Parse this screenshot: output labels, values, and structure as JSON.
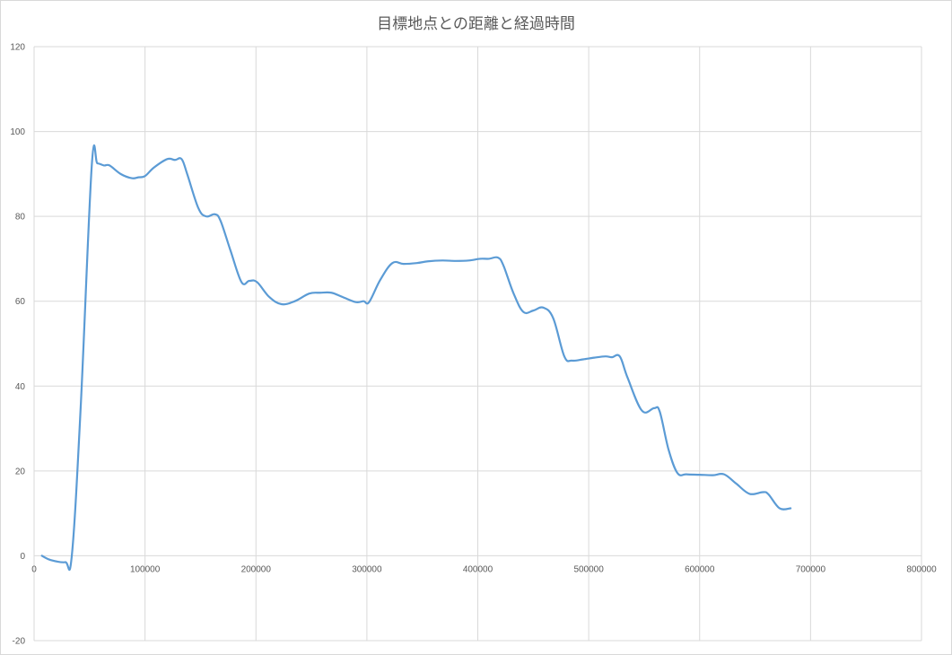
{
  "chart_data": {
    "type": "line",
    "title": "目標地点との距離と経過時間",
    "xlabel": "",
    "ylabel": "",
    "xlim": [
      0,
      800000
    ],
    "ylim": [
      -20,
      120
    ],
    "x_ticks": [
      0,
      100000,
      200000,
      300000,
      400000,
      500000,
      600000,
      700000,
      800000
    ],
    "x_tick_labels": [
      "0",
      "100000",
      "200000",
      "300000",
      "400000",
      "500000",
      "600000",
      "700000",
      "800000"
    ],
    "y_ticks": [
      -20,
      0,
      20,
      40,
      60,
      80,
      100,
      120
    ],
    "y_tick_labels": [
      "-20",
      "0",
      "20",
      "40",
      "60",
      "80",
      "100",
      "120"
    ],
    "grid": true,
    "legend": "none",
    "colors": {
      "series": "#5b9bd5",
      "grid": "#d9d9d9",
      "text": "#595959"
    },
    "series": [
      {
        "x": [
          7000,
          15000,
          28000,
          34000,
          42000,
          52000,
          57000,
          63000,
          68000,
          78000,
          88000,
          94000,
          100000,
          108000,
          120000,
          127000,
          133000,
          138000,
          148000,
          155000,
          163000,
          168000,
          177000,
          187000,
          194000,
          201000,
          212000,
          223000,
          235000,
          248000,
          258000,
          268000,
          278000,
          290000,
          297000,
          302000,
          312000,
          323000,
          333000,
          345000,
          355000,
          368000,
          380000,
          392000,
          402000,
          410000,
          418000,
          423000,
          432000,
          441000,
          450000,
          459000,
          468000,
          478000,
          485000,
          495000,
          505000,
          515000,
          521000,
          528000,
          535000,
          548000,
          559000,
          564000,
          572000,
          580000,
          588000,
          600000,
          612000,
          622000,
          633000,
          645000,
          657000,
          662000,
          672000,
          682000
        ],
        "y": [
          0,
          -1,
          -1.5,
          0,
          35,
          92,
          92.5,
          92,
          92,
          90,
          89,
          89.2,
          89.5,
          91.5,
          93.5,
          93.3,
          93.5,
          90,
          82,
          80,
          80.5,
          79,
          72,
          64.5,
          64.8,
          64.5,
          61,
          59.3,
          60,
          61.8,
          62,
          62,
          61,
          59.8,
          60,
          59.8,
          65,
          69,
          68.8,
          69,
          69.4,
          69.6,
          69.5,
          69.6,
          70,
          70,
          70.3,
          68.5,
          62,
          57.5,
          57.8,
          58.5,
          56,
          47,
          46,
          46.3,
          46.7,
          47,
          46.8,
          47,
          42,
          34.2,
          34.8,
          34,
          25,
          19.5,
          19.2,
          19.1,
          19,
          19.2,
          17,
          14.6,
          15,
          14.5,
          11.2,
          11.2
        ]
      }
    ]
  }
}
